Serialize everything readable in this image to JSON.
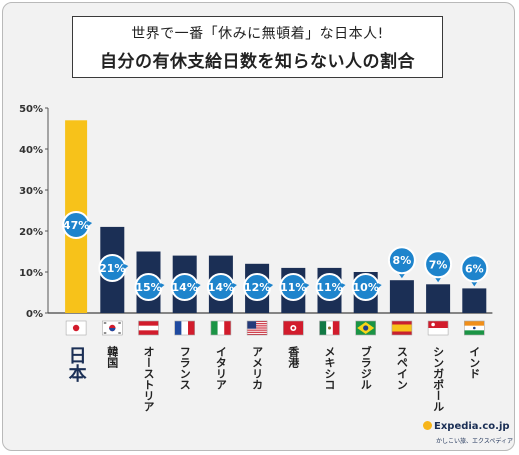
{
  "title_line1": "世界で一番「休みに無頓着」な日本人!",
  "title_line2": "自分の有休支給日数を知らない人の割合",
  "chart_data": {
    "type": "bar",
    "categories": [
      "日本",
      "韓国",
      "オーストリア",
      "フランス",
      "イタリア",
      "アメリカ",
      "香港",
      "メキシコ",
      "ブラジル",
      "スペイン",
      "シンガポール",
      "インド"
    ],
    "values": [
      47,
      21,
      15,
      14,
      14,
      12,
      11,
      11,
      10,
      8,
      7,
      6
    ],
    "data_labels": [
      "47%",
      "21%",
      "15%",
      "14%",
      "14%",
      "12%",
      "11%",
      "11%",
      "10%",
      "8%",
      "7%",
      "6%"
    ],
    "ylim": [
      0,
      50
    ],
    "yticks": [
      "0%",
      "10%",
      "20%",
      "30%",
      "40%",
      "50%"
    ],
    "grid": false,
    "highlight_category": "日本",
    "colors": {
      "highlight": "#f7c21a",
      "bar": "#1b2f55",
      "bubble": "#1e84cc",
      "bubble_text": "#ffffff"
    },
    "flags": [
      "japan-flag-icon",
      "south-korea-flag-icon",
      "austria-flag-icon",
      "france-flag-icon",
      "italy-flag-icon",
      "usa-flag-icon",
      "hong-kong-flag-icon",
      "mexico-flag-icon",
      "brazil-flag-icon",
      "spain-flag-icon",
      "singapore-flag-icon",
      "india-flag-icon"
    ]
  },
  "logo": {
    "main": "Expedia.co.jp",
    "sub": "かしこい旅、エクスペディア"
  }
}
